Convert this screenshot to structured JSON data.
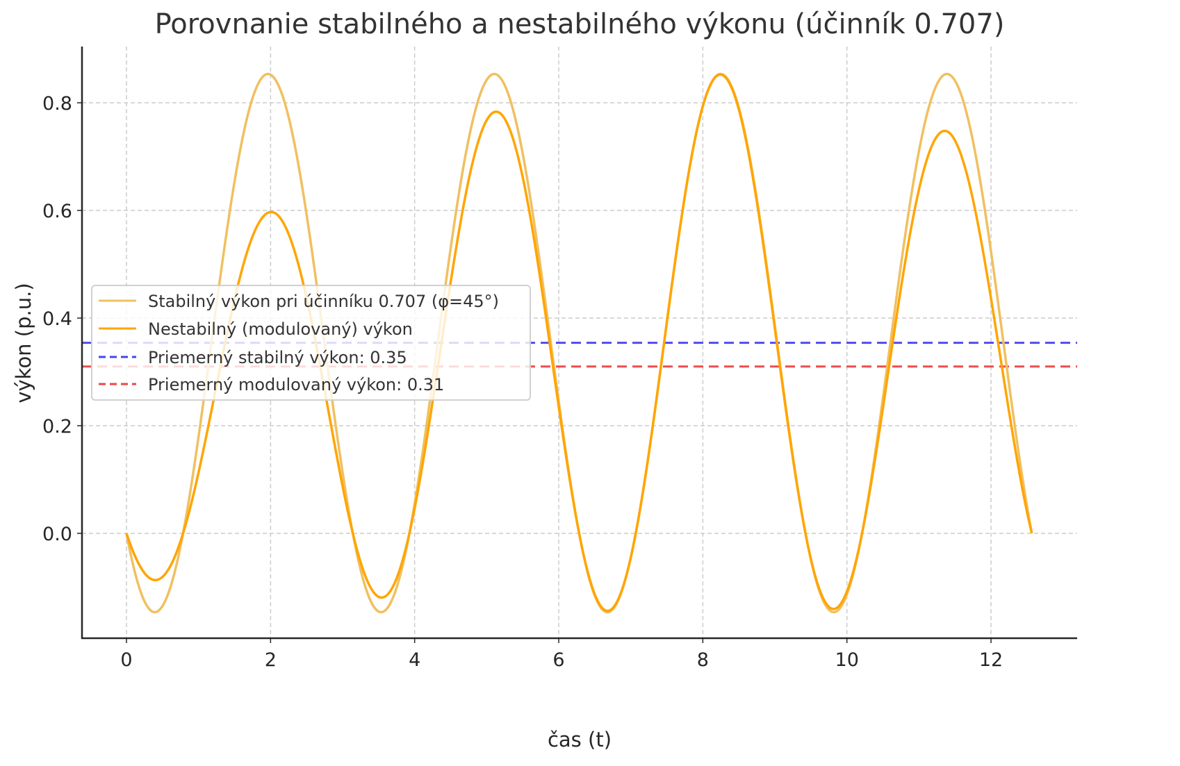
{
  "chart_data": {
    "type": "line",
    "title": "Porovnanie stabilného a nestabilného výkonu (účinník 0.707)",
    "xlabel": "čas (t)",
    "ylabel": "výkon (p.u.)",
    "xlim": [
      -0.62,
      13.19
    ],
    "ylim": [
      -0.196,
      0.905
    ],
    "xticks": [
      0,
      2,
      4,
      6,
      8,
      10,
      12
    ],
    "xtick_labels": [
      "0",
      "2",
      "4",
      "6",
      "8",
      "10",
      "12"
    ],
    "yticks": [
      0.0,
      0.2,
      0.4,
      0.6,
      0.8
    ],
    "ytick_labels": [
      "0.0",
      "0.2",
      "0.4",
      "0.6",
      "0.8"
    ],
    "grid": true,
    "legend_position": "center left",
    "x_range": [
      0,
      12.566
    ],
    "series": [
      {
        "name": "Stabilný výkon pri účinníku 0.707 (φ=45°)",
        "color": "#f0c060",
        "style": "solid",
        "x": [
          0,
          0.39,
          1.18,
          1.96,
          2.75,
          3.53,
          4.32,
          5.11,
          5.89,
          6.68,
          7.46,
          8.25,
          9.03,
          9.82,
          10.6,
          11.39,
          12.17,
          12.566
        ],
        "values": [
          0.0,
          -0.146,
          0.354,
          0.854,
          0.354,
          -0.146,
          0.354,
          0.854,
          0.354,
          -0.146,
          0.354,
          0.854,
          0.354,
          -0.146,
          0.354,
          0.854,
          0.354,
          0.0
        ]
      },
      {
        "name": "Nestabilný (modulovaný) výkon",
        "color": "#ffa500",
        "style": "solid",
        "x": [
          0,
          0.39,
          1.18,
          1.96,
          2.75,
          3.53,
          4.32,
          5.11,
          5.89,
          6.68,
          7.46,
          8.25,
          9.03,
          9.82,
          10.6,
          11.39,
          12.17,
          12.566
        ],
        "values": [
          0.0,
          -0.08,
          0.22,
          0.59,
          0.27,
          -0.12,
          0.31,
          0.79,
          0.34,
          -0.146,
          0.354,
          0.85,
          0.35,
          -0.14,
          0.33,
          0.75,
          0.3,
          0.0
        ]
      },
      {
        "name": "Priemerný stabilný výkon: 0.35",
        "color": "#4444ee",
        "style": "dashed",
        "constant": 0.354
      },
      {
        "name": "Priemerný modulovaný výkon: 0.31",
        "color": "#ee4444",
        "style": "dashed",
        "constant": 0.31
      }
    ]
  }
}
